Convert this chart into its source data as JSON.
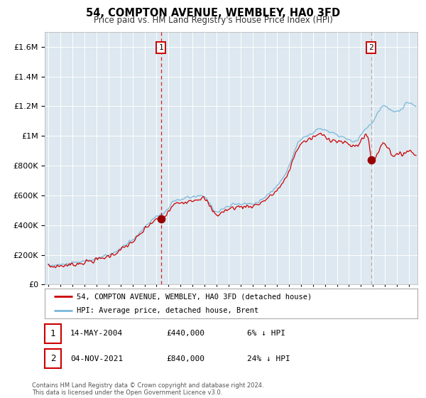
{
  "title": "54, COMPTON AVENUE, WEMBLEY, HA0 3FD",
  "subtitle": "Price paid vs. HM Land Registry's House Price Index (HPI)",
  "legend_line1": "54, COMPTON AVENUE, WEMBLEY, HA0 3FD (detached house)",
  "legend_line2": "HPI: Average price, detached house, Brent",
  "annotation1_label": "1",
  "annotation1_date": "14-MAY-2004",
  "annotation1_price": "£440,000",
  "annotation1_hpi": "6% ↓ HPI",
  "annotation1_year": 2004.37,
  "annotation1_value": 440000,
  "annotation2_label": "2",
  "annotation2_date": "04-NOV-2021",
  "annotation2_price": "£840,000",
  "annotation2_hpi": "24% ↓ HPI",
  "annotation2_year": 2021.84,
  "annotation2_value": 840000,
  "vline1_x": 2004.37,
  "vline1_color": "#cc0000",
  "vline2_x": 2021.84,
  "vline2_color": "#aaaaaa",
  "hpi_color": "#7ab8d9",
  "price_color": "#cc0000",
  "dot_color": "#990000",
  "bg_color": "#dde8f0",
  "grid_color": "#ffffff",
  "ylim": [
    0,
    1700000
  ],
  "xlim_start": 1994.7,
  "xlim_end": 2025.7,
  "footer": "Contains HM Land Registry data © Crown copyright and database right 2024.\nThis data is licensed under the Open Government Licence v3.0."
}
